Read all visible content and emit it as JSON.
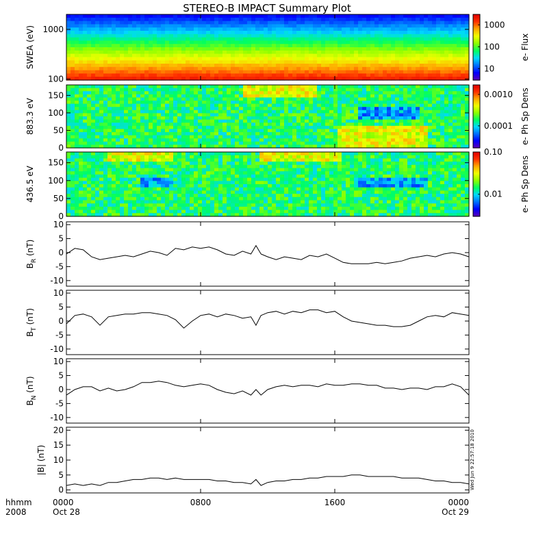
{
  "title": "STEREO-B IMPACT Summary Plot",
  "time_axis": {
    "left_labels": [
      "hhmm",
      "2008"
    ],
    "ticks": [
      {
        "hours": 0,
        "top": "0000",
        "bottom": "Oct 28"
      },
      {
        "hours": 8,
        "top": "0800",
        "bottom": ""
      },
      {
        "hours": 16,
        "top": "1600",
        "bottom": ""
      },
      {
        "hours": 24,
        "top": "0000",
        "bottom": "Oct 29"
      }
    ],
    "range_hours": [
      0,
      24
    ]
  },
  "side_stamp": "Wed Jun  9 22:57:18 2010",
  "colors": {
    "spectrum": [
      "#5a00b4",
      "#0000ff",
      "#0070ff",
      "#00d8ff",
      "#00ff60",
      "#8cff00",
      "#f0ff00",
      "#ffa800",
      "#ff3000",
      "#e00000"
    ]
  },
  "chart_data": [
    {
      "type": "heatmap",
      "panel": "swea",
      "ylabel": "SWEA (eV)",
      "yscale": "log",
      "ylim": [
        95,
        2000
      ],
      "yticks": [
        "100",
        "1000"
      ],
      "yticks_values": [
        100,
        1000
      ],
      "colorbar": {
        "label": "e- Flux",
        "scale": "log",
        "range": [
          3,
          3000
        ],
        "ticks": [
          "10",
          "100",
          "1000"
        ],
        "tick_values": [
          10,
          100,
          1000
        ]
      },
      "energy_rows_eV": [
        2000,
        1300,
        800,
        500,
        300,
        200,
        150,
        100
      ],
      "flux_profile": [
        5,
        25,
        150,
        400,
        800,
        1500,
        2200,
        2600
      ]
    },
    {
      "type": "heatmap",
      "panel": "pa_883",
      "ylabel": "883.3 eV",
      "ylim": [
        0,
        180
      ],
      "yticks": [
        "0",
        "50",
        "100",
        "150"
      ],
      "yticks_values": [
        0,
        50,
        100,
        150
      ],
      "colorbar": {
        "label": "e- Ph Sp Dens",
        "scale": "log",
        "range": [
          2e-05,
          0.002
        ],
        "ticks": [
          "0.0001",
          "0.0010"
        ],
        "tick_values": [
          0.0001,
          0.001
        ]
      },
      "features": [
        {
          "t": [
            10.5,
            15.0
          ],
          "pa": [
            140,
            180
          ],
          "level": "high"
        },
        {
          "t": [
            16.2,
            21.5
          ],
          "pa": [
            0,
            60
          ],
          "level": "high"
        },
        {
          "t": [
            17.5,
            21.0
          ],
          "pa": [
            85,
            115
          ],
          "level": "low"
        }
      ]
    },
    {
      "type": "heatmap",
      "panel": "pa_436",
      "ylabel": "436.5 eV",
      "ylim": [
        0,
        180
      ],
      "yticks": [
        "0",
        "50",
        "100",
        "150"
      ],
      "yticks_values": [
        0,
        50,
        100,
        150
      ],
      "colorbar": {
        "label": "e- Ph Sp Dens",
        "scale": "log",
        "range": [
          0.003,
          0.1
        ],
        "ticks": [
          "0.01",
          "0.10"
        ],
        "tick_values": [
          0.01,
          0.1
        ]
      },
      "features": [
        {
          "t": [
            2.5,
            6.3
          ],
          "pa": [
            150,
            180
          ],
          "level": "high"
        },
        {
          "t": [
            11.5,
            16.5
          ],
          "pa": [
            150,
            180
          ],
          "level": "high"
        },
        {
          "t": [
            4.5,
            6.3
          ],
          "pa": [
            80,
            110
          ],
          "level": "low"
        },
        {
          "t": [
            17.5,
            21.5
          ],
          "pa": [
            80,
            110
          ],
          "level": "low"
        }
      ]
    },
    {
      "type": "line",
      "panel": "br",
      "ylabel": "B",
      "ylabel_sub": "R",
      "ylabel_unit": " (nT)",
      "ylim": [
        -12,
        11
      ],
      "yticks": [
        "-10",
        "-5",
        "0",
        "5",
        "10"
      ],
      "yticks_values": [
        -10,
        -5,
        0,
        5,
        10
      ],
      "x_hours": [
        0,
        0.5,
        1.0,
        1.5,
        2.0,
        2.5,
        3.0,
        3.5,
        4.0,
        4.5,
        5.0,
        5.5,
        6.0,
        6.5,
        7.0,
        7.5,
        8.0,
        8.5,
        9.0,
        9.5,
        10.0,
        10.5,
        11.0,
        11.3,
        11.6,
        12.0,
        12.5,
        13.0,
        13.5,
        14.0,
        14.5,
        15.0,
        15.5,
        16.0,
        16.5,
        17.0,
        17.5,
        18.0,
        18.5,
        19.0,
        19.5,
        20.0,
        20.5,
        21.0,
        21.5,
        22.0,
        22.5,
        23.0,
        23.5,
        24.0
      ],
      "values": [
        -0.5,
        1.5,
        1.0,
        -1.5,
        -2.5,
        -2.0,
        -1.5,
        -1.0,
        -1.5,
        -0.5,
        0.5,
        0.0,
        -1.0,
        1.5,
        1.0,
        2.0,
        1.5,
        2.0,
        1.0,
        -0.5,
        -1.0,
        0.5,
        -0.5,
        2.5,
        -0.5,
        -1.5,
        -2.5,
        -1.5,
        -2.0,
        -2.5,
        -1.0,
        -1.5,
        -0.5,
        -2.0,
        -3.5,
        -4.0,
        -4.0,
        -4.0,
        -3.5,
        -4.0,
        -3.5,
        -3.0,
        -2.0,
        -1.5,
        -1.0,
        -1.5,
        -0.5,
        0.0,
        -0.5,
        -1.5
      ]
    },
    {
      "type": "line",
      "panel": "bt",
      "ylabel": "B",
      "ylabel_sub": "T",
      "ylabel_unit": " (nT)",
      "ylim": [
        -12,
        11
      ],
      "yticks": [
        "-10",
        "-5",
        "0",
        "5",
        "10"
      ],
      "yticks_values": [
        -10,
        -5,
        0,
        5,
        10
      ],
      "x_hours": [
        0,
        0.5,
        1.0,
        1.5,
        2.0,
        2.5,
        3.0,
        3.5,
        4.0,
        4.5,
        5.0,
        5.5,
        6.0,
        6.5,
        7.0,
        7.5,
        8.0,
        8.5,
        9.0,
        9.5,
        10.0,
        10.5,
        11.0,
        11.3,
        11.6,
        12.0,
        12.5,
        13.0,
        13.5,
        14.0,
        14.5,
        15.0,
        15.5,
        16.0,
        16.5,
        17.0,
        17.5,
        18.0,
        18.5,
        19.0,
        19.5,
        20.0,
        20.5,
        21.0,
        21.5,
        22.0,
        22.5,
        23.0,
        23.5,
        24.0
      ],
      "values": [
        -1.0,
        2.0,
        2.5,
        1.5,
        -1.5,
        1.5,
        2.0,
        2.5,
        2.5,
        3.0,
        3.0,
        2.5,
        2.0,
        0.5,
        -2.5,
        0.0,
        2.0,
        2.5,
        1.5,
        2.5,
        2.0,
        1.0,
        1.5,
        -1.5,
        2.0,
        3.0,
        3.5,
        2.5,
        3.5,
        3.0,
        4.0,
        4.0,
        3.0,
        3.5,
        1.5,
        0.0,
        -0.5,
        -1.0,
        -1.5,
        -1.5,
        -2.0,
        -2.0,
        -1.5,
        0.0,
        1.5,
        2.0,
        1.5,
        3.0,
        2.5,
        2.0
      ]
    },
    {
      "type": "line",
      "panel": "bn",
      "ylabel": "B",
      "ylabel_sub": "N",
      "ylabel_unit": " (nT)",
      "ylim": [
        -12,
        11
      ],
      "yticks": [
        "-10",
        "-5",
        "0",
        "5",
        "10"
      ],
      "yticks_values": [
        -10,
        -5,
        0,
        5,
        10
      ],
      "x_hours": [
        0,
        0.5,
        1.0,
        1.5,
        2.0,
        2.5,
        3.0,
        3.5,
        4.0,
        4.5,
        5.0,
        5.5,
        6.0,
        6.5,
        7.0,
        7.5,
        8.0,
        8.5,
        9.0,
        9.5,
        10.0,
        10.5,
        11.0,
        11.3,
        11.6,
        12.0,
        12.5,
        13.0,
        13.5,
        14.0,
        14.5,
        15.0,
        15.5,
        16.0,
        16.5,
        17.0,
        17.5,
        18.0,
        18.5,
        19.0,
        19.5,
        20.0,
        20.5,
        21.0,
        21.5,
        22.0,
        22.5,
        23.0,
        23.5,
        24.0
      ],
      "values": [
        -2.0,
        0.0,
        1.0,
        1.0,
        -0.5,
        0.5,
        -0.5,
        0.0,
        1.0,
        2.5,
        2.5,
        3.0,
        2.5,
        1.5,
        1.0,
        1.5,
        2.0,
        1.5,
        0.0,
        -1.0,
        -1.5,
        -0.5,
        -2.0,
        0.0,
        -2.0,
        0.0,
        1.0,
        1.5,
        1.0,
        1.5,
        1.5,
        1.0,
        2.0,
        1.5,
        1.5,
        2.0,
        2.0,
        1.5,
        1.5,
        0.5,
        0.5,
        0.0,
        0.5,
        0.5,
        0.0,
        1.0,
        1.0,
        2.0,
        1.0,
        -2.0
      ]
    },
    {
      "type": "line",
      "panel": "bmag",
      "ylabel": "|B| (nT)",
      "ylim": [
        -1,
        21
      ],
      "yticks": [
        "0",
        "5",
        "10",
        "15",
        "20"
      ],
      "yticks_values": [
        0,
        5,
        10,
        15,
        20
      ],
      "x_hours": [
        0,
        0.5,
        1.0,
        1.5,
        2.0,
        2.5,
        3.0,
        3.5,
        4.0,
        4.5,
        5.0,
        5.5,
        6.0,
        6.5,
        7.0,
        7.5,
        8.0,
        8.5,
        9.0,
        9.5,
        10.0,
        10.5,
        11.0,
        11.3,
        11.6,
        12.0,
        12.5,
        13.0,
        13.5,
        14.0,
        14.5,
        15.0,
        15.5,
        16.0,
        16.5,
        17.0,
        17.5,
        18.0,
        18.5,
        19.0,
        19.5,
        20.0,
        20.5,
        21.0,
        21.5,
        22.0,
        22.5,
        23.0,
        23.5,
        24.0
      ],
      "values": [
        1.5,
        2.0,
        1.5,
        2.0,
        1.5,
        2.5,
        2.5,
        3.0,
        3.5,
        3.5,
        4.0,
        4.0,
        3.5,
        4.0,
        3.5,
        3.5,
        3.5,
        3.5,
        3.0,
        3.0,
        2.5,
        2.5,
        2.0,
        3.5,
        1.5,
        2.5,
        3.0,
        3.0,
        3.5,
        3.5,
        4.0,
        4.0,
        4.5,
        4.5,
        4.5,
        5.0,
        5.0,
        4.5,
        4.5,
        4.5,
        4.5,
        4.0,
        4.0,
        4.0,
        3.5,
        3.0,
        3.0,
        2.5,
        2.5,
        2.0
      ]
    }
  ]
}
